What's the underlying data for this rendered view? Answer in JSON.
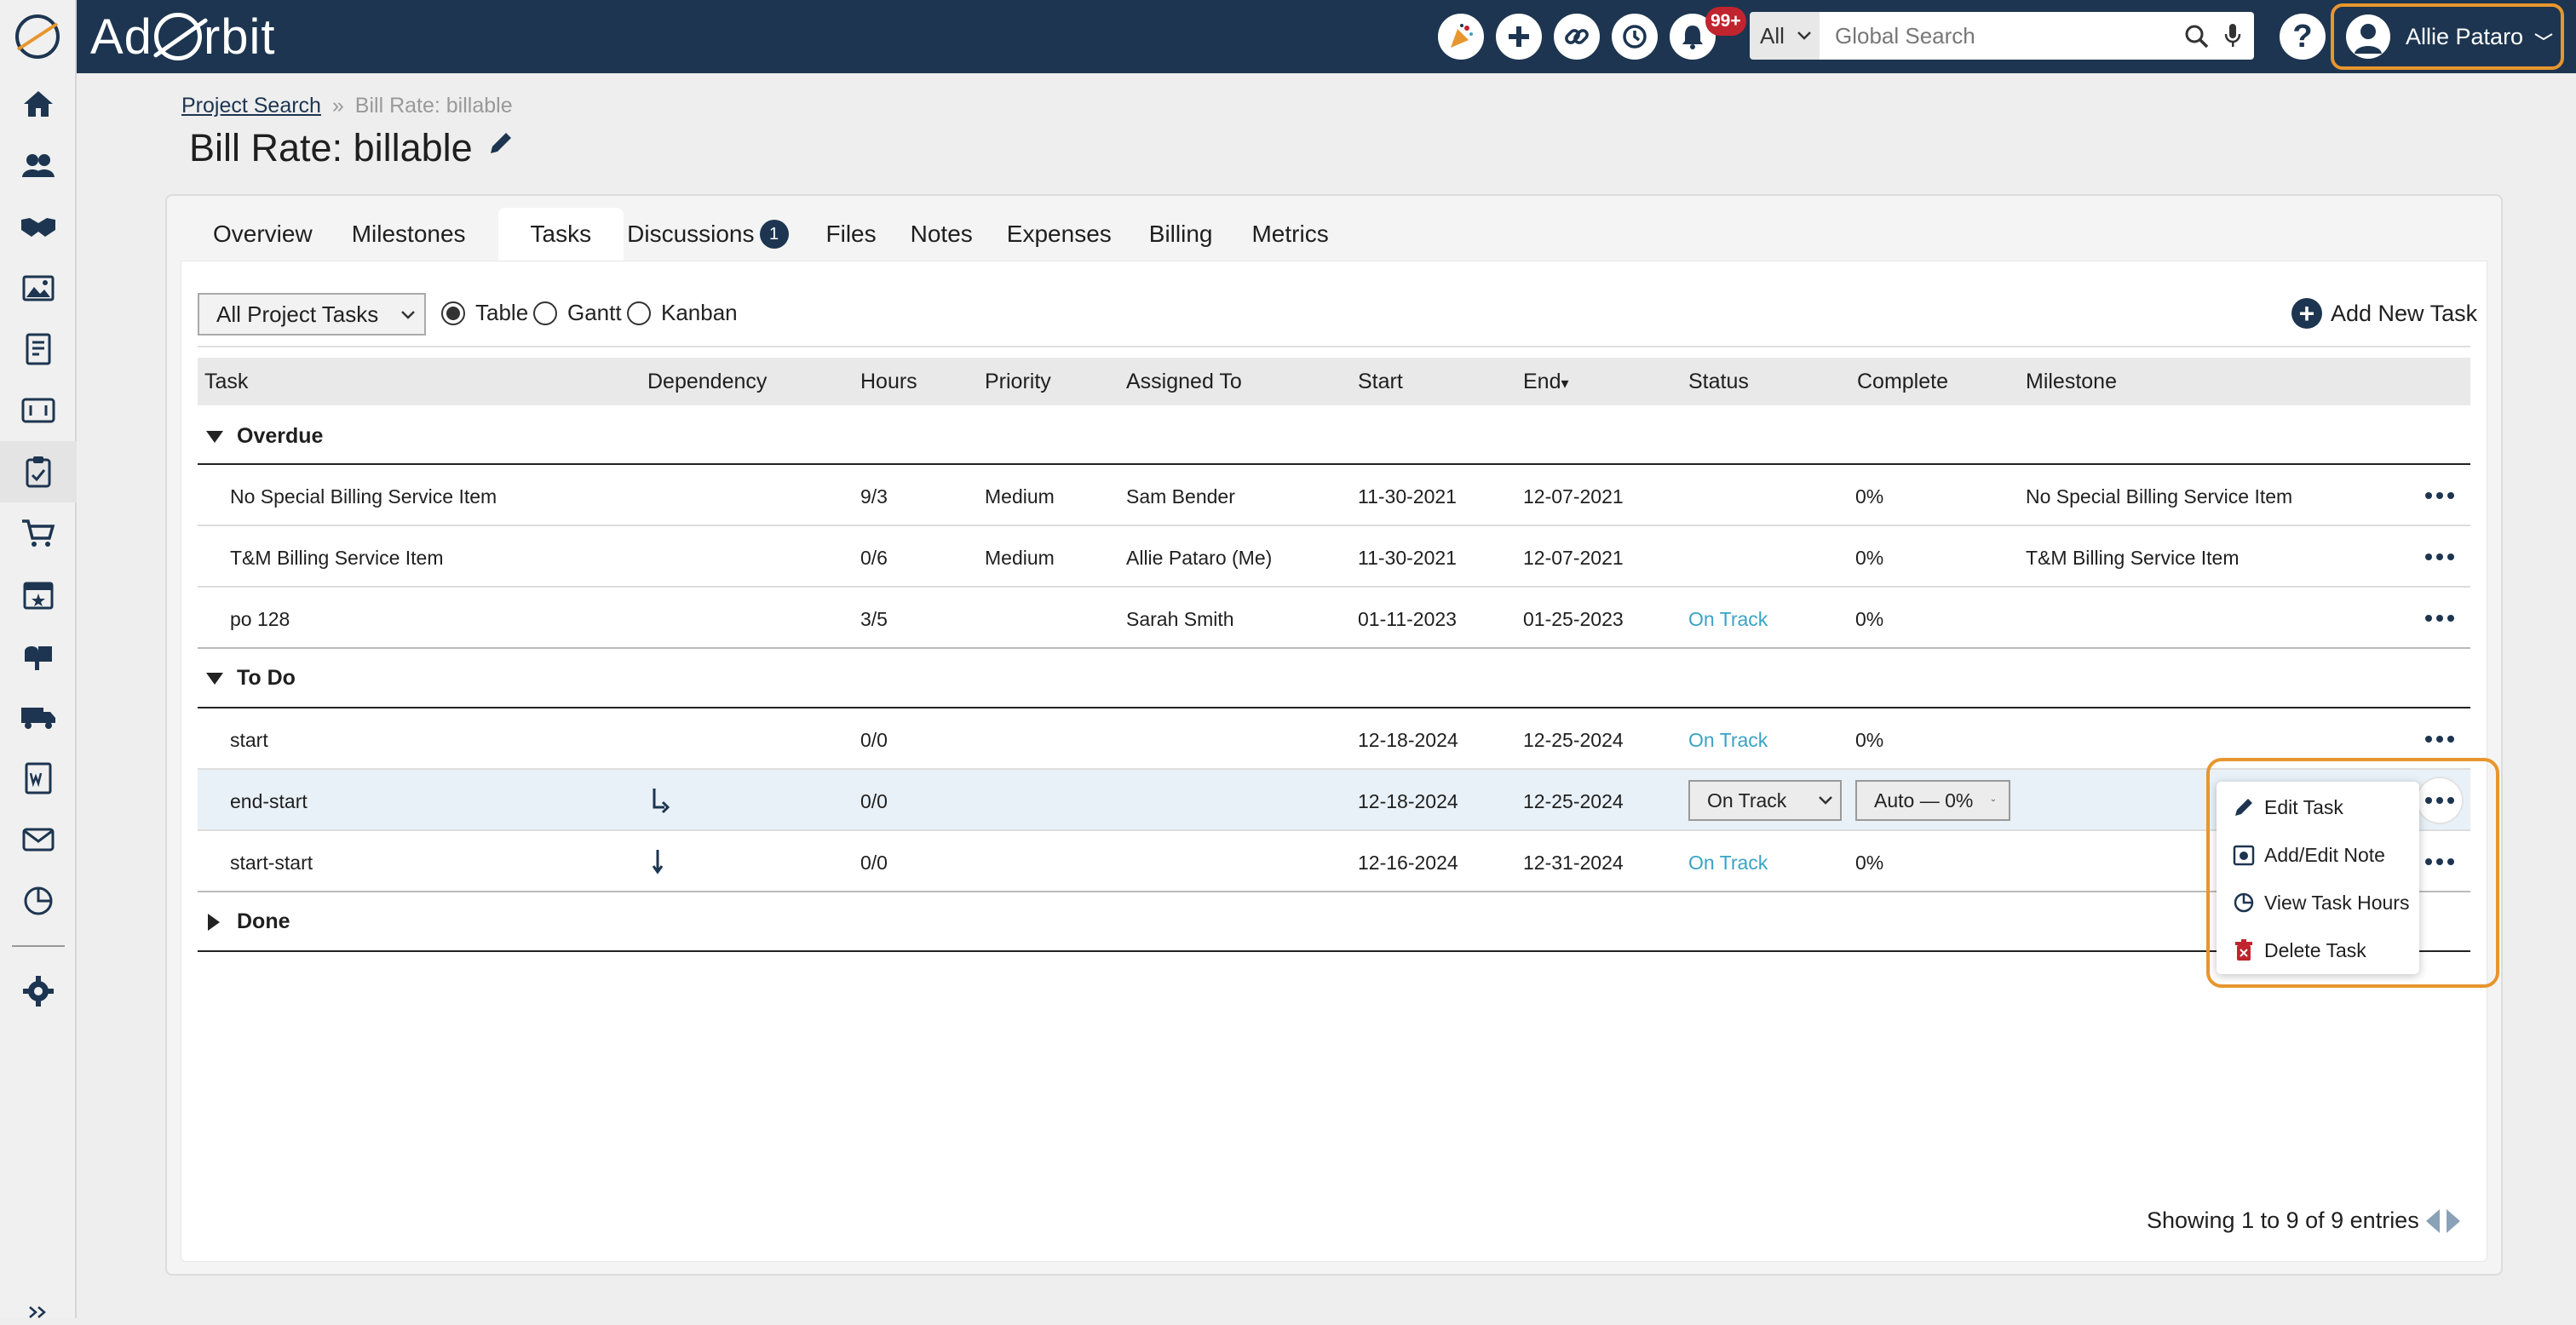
{
  "app": {
    "name": "Ad Orbit"
  },
  "header": {
    "notifications_badge": "99+",
    "search_scope": "All",
    "search_placeholder": "Global Search",
    "user_name": "Allie Pataro",
    "help_label": "?"
  },
  "breadcrumb": {
    "link": "Project Search",
    "sep": "»",
    "current": "Bill Rate: billable"
  },
  "page_title": "Bill Rate: billable",
  "tabs": [
    {
      "label": "Overview"
    },
    {
      "label": "Milestones"
    },
    {
      "label": "Tasks"
    },
    {
      "label": "Discussions",
      "count": "1"
    },
    {
      "label": "Files"
    },
    {
      "label": "Notes"
    },
    {
      "label": "Expenses"
    },
    {
      "label": "Billing"
    },
    {
      "label": "Metrics"
    }
  ],
  "active_tab": "Tasks",
  "toolbar": {
    "filter_value": "All Project Tasks",
    "views": [
      "Table",
      "Gantt",
      "Kanban"
    ],
    "selected_view": "Table",
    "add_task_label": "Add New Task"
  },
  "columns": [
    "Task",
    "Dependency",
    "Hours",
    "Priority",
    "Assigned To",
    "Start",
    "End",
    "Status",
    "Complete",
    "Milestone"
  ],
  "sort_indicator": "▾",
  "groups": {
    "overdue": {
      "label": "Overdue",
      "expanded": true
    },
    "todo": {
      "label": "To Do",
      "expanded": true
    },
    "done": {
      "label": "Done",
      "expanded": false
    }
  },
  "rows": [
    {
      "task": "No Special Billing Service Item",
      "hours": "9/3",
      "priority": "Medium",
      "assigned": "Sam Bender",
      "start": "11-30-2021",
      "end": "12-07-2021",
      "status": "",
      "complete": "0%",
      "milestone": "No Special Billing Service Item"
    },
    {
      "task": "T&M Billing Service Item",
      "hours": "0/6",
      "priority": "Medium",
      "assigned": "Allie Pataro (Me)",
      "start": "11-30-2021",
      "end": "12-07-2021",
      "status": "",
      "complete": "0%",
      "milestone": "T&M Billing Service Item"
    },
    {
      "task": "po 128",
      "hours": "3/5",
      "priority": "",
      "assigned": "Sarah Smith",
      "start": "01-11-2023",
      "end": "01-25-2023",
      "status": "On Track",
      "complete": "0%",
      "milestone": ""
    },
    {
      "task": "start",
      "hours": "0/0",
      "priority": "",
      "assigned": "",
      "start": "12-18-2024",
      "end": "12-25-2024",
      "status": "On Track",
      "complete": "0%",
      "milestone": ""
    },
    {
      "task": "end-start",
      "hours": "0/0",
      "priority": "",
      "assigned": "",
      "start": "12-18-2024",
      "end": "12-25-2024",
      "status_select": "On Track",
      "complete_select": "Auto — 0%",
      "milestone": ""
    },
    {
      "task": "start-start",
      "hours": "0/0",
      "priority": "",
      "assigned": "",
      "start": "12-16-2024",
      "end": "12-31-2024",
      "status": "On Track",
      "complete": "0%",
      "milestone": ""
    }
  ],
  "context_menu": [
    "Edit Task",
    "Add/Edit Note",
    "View Task Hours",
    "Delete Task"
  ],
  "footer": {
    "entries_text": "Showing 1 to 9 of 9 entries"
  },
  "colors": {
    "nav": "#1d3550",
    "accent": "#e7962e",
    "on_track": "#3aa3c6",
    "badge": "#c0242e"
  }
}
